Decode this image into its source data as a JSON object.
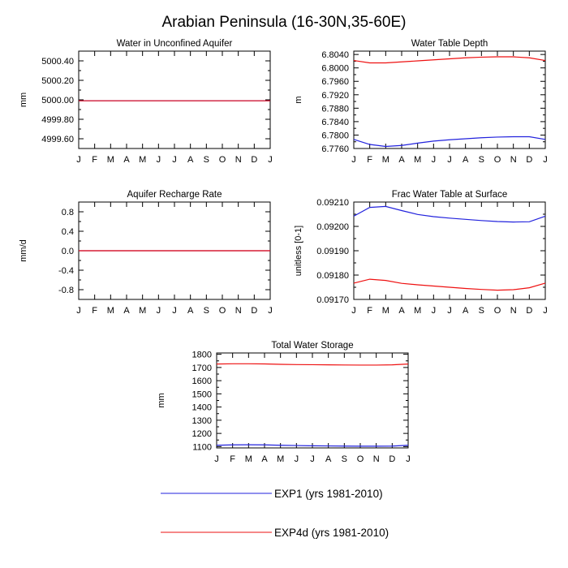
{
  "figure": {
    "title": "Arabian Peninsula (16-30N,35-60E)"
  },
  "legend": {
    "entries": [
      {
        "series": "EXP1",
        "label": "EXP1 (yrs 1981-2010)",
        "color": "#2222dd"
      },
      {
        "series": "EXP4d",
        "label": "EXP4d (yrs 1981-2010)",
        "color": "#ee1111"
      }
    ]
  },
  "chart_data": [
    {
      "id": "water-unconfined-aquifer",
      "type": "line",
      "title": "Water in Unconfined Aquifer",
      "xlabel": "",
      "ylabel": "mm",
      "x": [
        "J",
        "F",
        "M",
        "A",
        "M",
        "J",
        "J",
        "A",
        "S",
        "O",
        "N",
        "D",
        "J"
      ],
      "ylim": [
        4999.5,
        5000.5
      ],
      "yticks": [
        5000.4,
        5000.2,
        5000.0,
        4999.8,
        4999.6
      ],
      "ytick_labels": [
        "5000.40",
        "5000.20",
        "5000.00",
        "4999.80",
        "4999.60"
      ],
      "series": [
        {
          "name": "EXP1",
          "color": "#2222dd",
          "values": [
            4999.99,
            4999.99,
            4999.99,
            4999.99,
            4999.99,
            4999.99,
            4999.99,
            4999.99,
            4999.99,
            4999.99,
            4999.99,
            4999.99,
            4999.99
          ]
        },
        {
          "name": "EXP4d",
          "color": "#ee1111",
          "values": [
            4999.99,
            4999.99,
            4999.99,
            4999.99,
            4999.99,
            4999.99,
            4999.99,
            4999.99,
            4999.99,
            4999.99,
            4999.99,
            4999.99,
            4999.99
          ]
        }
      ]
    },
    {
      "id": "water-table-depth",
      "type": "line",
      "title": "Water Table Depth",
      "xlabel": "",
      "ylabel": "m",
      "x": [
        "J",
        "F",
        "M",
        "A",
        "M",
        "J",
        "J",
        "A",
        "S",
        "O",
        "N",
        "D",
        "J"
      ],
      "ylim": [
        6.776,
        6.805
      ],
      "yticks": [
        6.804,
        6.8,
        6.796,
        6.792,
        6.788,
        6.784,
        6.78,
        6.776
      ],
      "ytick_labels": [
        "6.8040",
        "6.8000",
        "6.7960",
        "6.7920",
        "6.7880",
        "6.7840",
        "6.7800",
        "6.7760"
      ],
      "series": [
        {
          "name": "EXP1",
          "color": "#2222dd",
          "values": [
            6.7787,
            6.7772,
            6.7766,
            6.7769,
            6.7776,
            6.7782,
            6.7786,
            6.7789,
            6.7792,
            6.7794,
            6.7795,
            6.7795,
            6.7787
          ]
        },
        {
          "name": "EXP4d",
          "color": "#ee1111",
          "values": [
            6.8022,
            6.8015,
            6.8015,
            6.8018,
            6.8021,
            6.8024,
            6.8027,
            6.803,
            6.8032,
            6.8033,
            6.8033,
            6.803,
            6.8022
          ]
        }
      ]
    },
    {
      "id": "aquifer-recharge-rate",
      "type": "line",
      "title": "Aquifer Recharge Rate",
      "xlabel": "",
      "ylabel": "mm/d",
      "x": [
        "J",
        "F",
        "M",
        "A",
        "M",
        "J",
        "J",
        "A",
        "S",
        "O",
        "N",
        "D",
        "J"
      ],
      "ylim": [
        -1.0,
        1.0
      ],
      "yticks": [
        0.8,
        0.4,
        0.0,
        -0.4,
        -0.8
      ],
      "ytick_labels": [
        "0.8",
        "0.4",
        "0.0",
        "-0.4",
        "-0.8"
      ],
      "series": [
        {
          "name": "EXP1",
          "color": "#2222dd",
          "values": [
            0,
            0,
            0,
            0,
            0,
            0,
            0,
            0,
            0,
            0,
            0,
            0,
            0
          ]
        },
        {
          "name": "EXP4d",
          "color": "#ee1111",
          "values": [
            0,
            0,
            0,
            0,
            0,
            0,
            0,
            0,
            0,
            0,
            0,
            0,
            0
          ]
        }
      ]
    },
    {
      "id": "frac-water-table-surface",
      "type": "line",
      "title": "Frac Water Table at Surface",
      "xlabel": "",
      "ylabel": "unitless [0-1]",
      "x": [
        "J",
        "F",
        "M",
        "A",
        "M",
        "J",
        "J",
        "A",
        "S",
        "O",
        "N",
        "D",
        "J"
      ],
      "ylim": [
        0.0917,
        0.0921
      ],
      "yticks": [
        0.0921,
        0.092,
        0.0919,
        0.0918,
        0.0917
      ],
      "ytick_labels": [
        "0.09210",
        "0.09200",
        "0.09190",
        "0.09180",
        "0.09170"
      ],
      "series": [
        {
          "name": "EXP1",
          "color": "#2222dd",
          "values": [
            0.092042,
            0.092078,
            0.092082,
            0.092065,
            0.092049,
            0.09204,
            0.092034,
            0.092029,
            0.092024,
            0.09202,
            0.092018,
            0.092019,
            0.092042
          ]
        },
        {
          "name": "EXP4d",
          "color": "#ee1111",
          "values": [
            0.091767,
            0.091783,
            0.091778,
            0.091766,
            0.09176,
            0.091755,
            0.09175,
            0.091745,
            0.091741,
            0.091738,
            0.09174,
            0.091748,
            0.091767
          ]
        }
      ]
    },
    {
      "id": "total-water-storage",
      "type": "line",
      "title": "Total Water Storage",
      "xlabel": "",
      "ylabel": "mm",
      "x": [
        "J",
        "F",
        "M",
        "A",
        "M",
        "J",
        "J",
        "A",
        "S",
        "O",
        "N",
        "D",
        "J"
      ],
      "ylim": [
        1090,
        1810
      ],
      "yticks": [
        1800,
        1700,
        1600,
        1500,
        1400,
        1300,
        1200,
        1100
      ],
      "ytick_labels": [
        "1800",
        "1700",
        "1600",
        "1500",
        "1400",
        "1300",
        "1200",
        "1100"
      ],
      "series": [
        {
          "name": "EXP1",
          "color": "#2222dd",
          "values": [
            1110,
            1113,
            1114,
            1113,
            1110,
            1108,
            1106,
            1105,
            1104,
            1103,
            1103,
            1104,
            1110
          ]
        },
        {
          "name": "EXP4d",
          "color": "#ee1111",
          "values": [
            1726,
            1728,
            1728,
            1727,
            1724,
            1722,
            1721,
            1720,
            1719,
            1718,
            1718,
            1720,
            1726
          ]
        }
      ]
    }
  ]
}
